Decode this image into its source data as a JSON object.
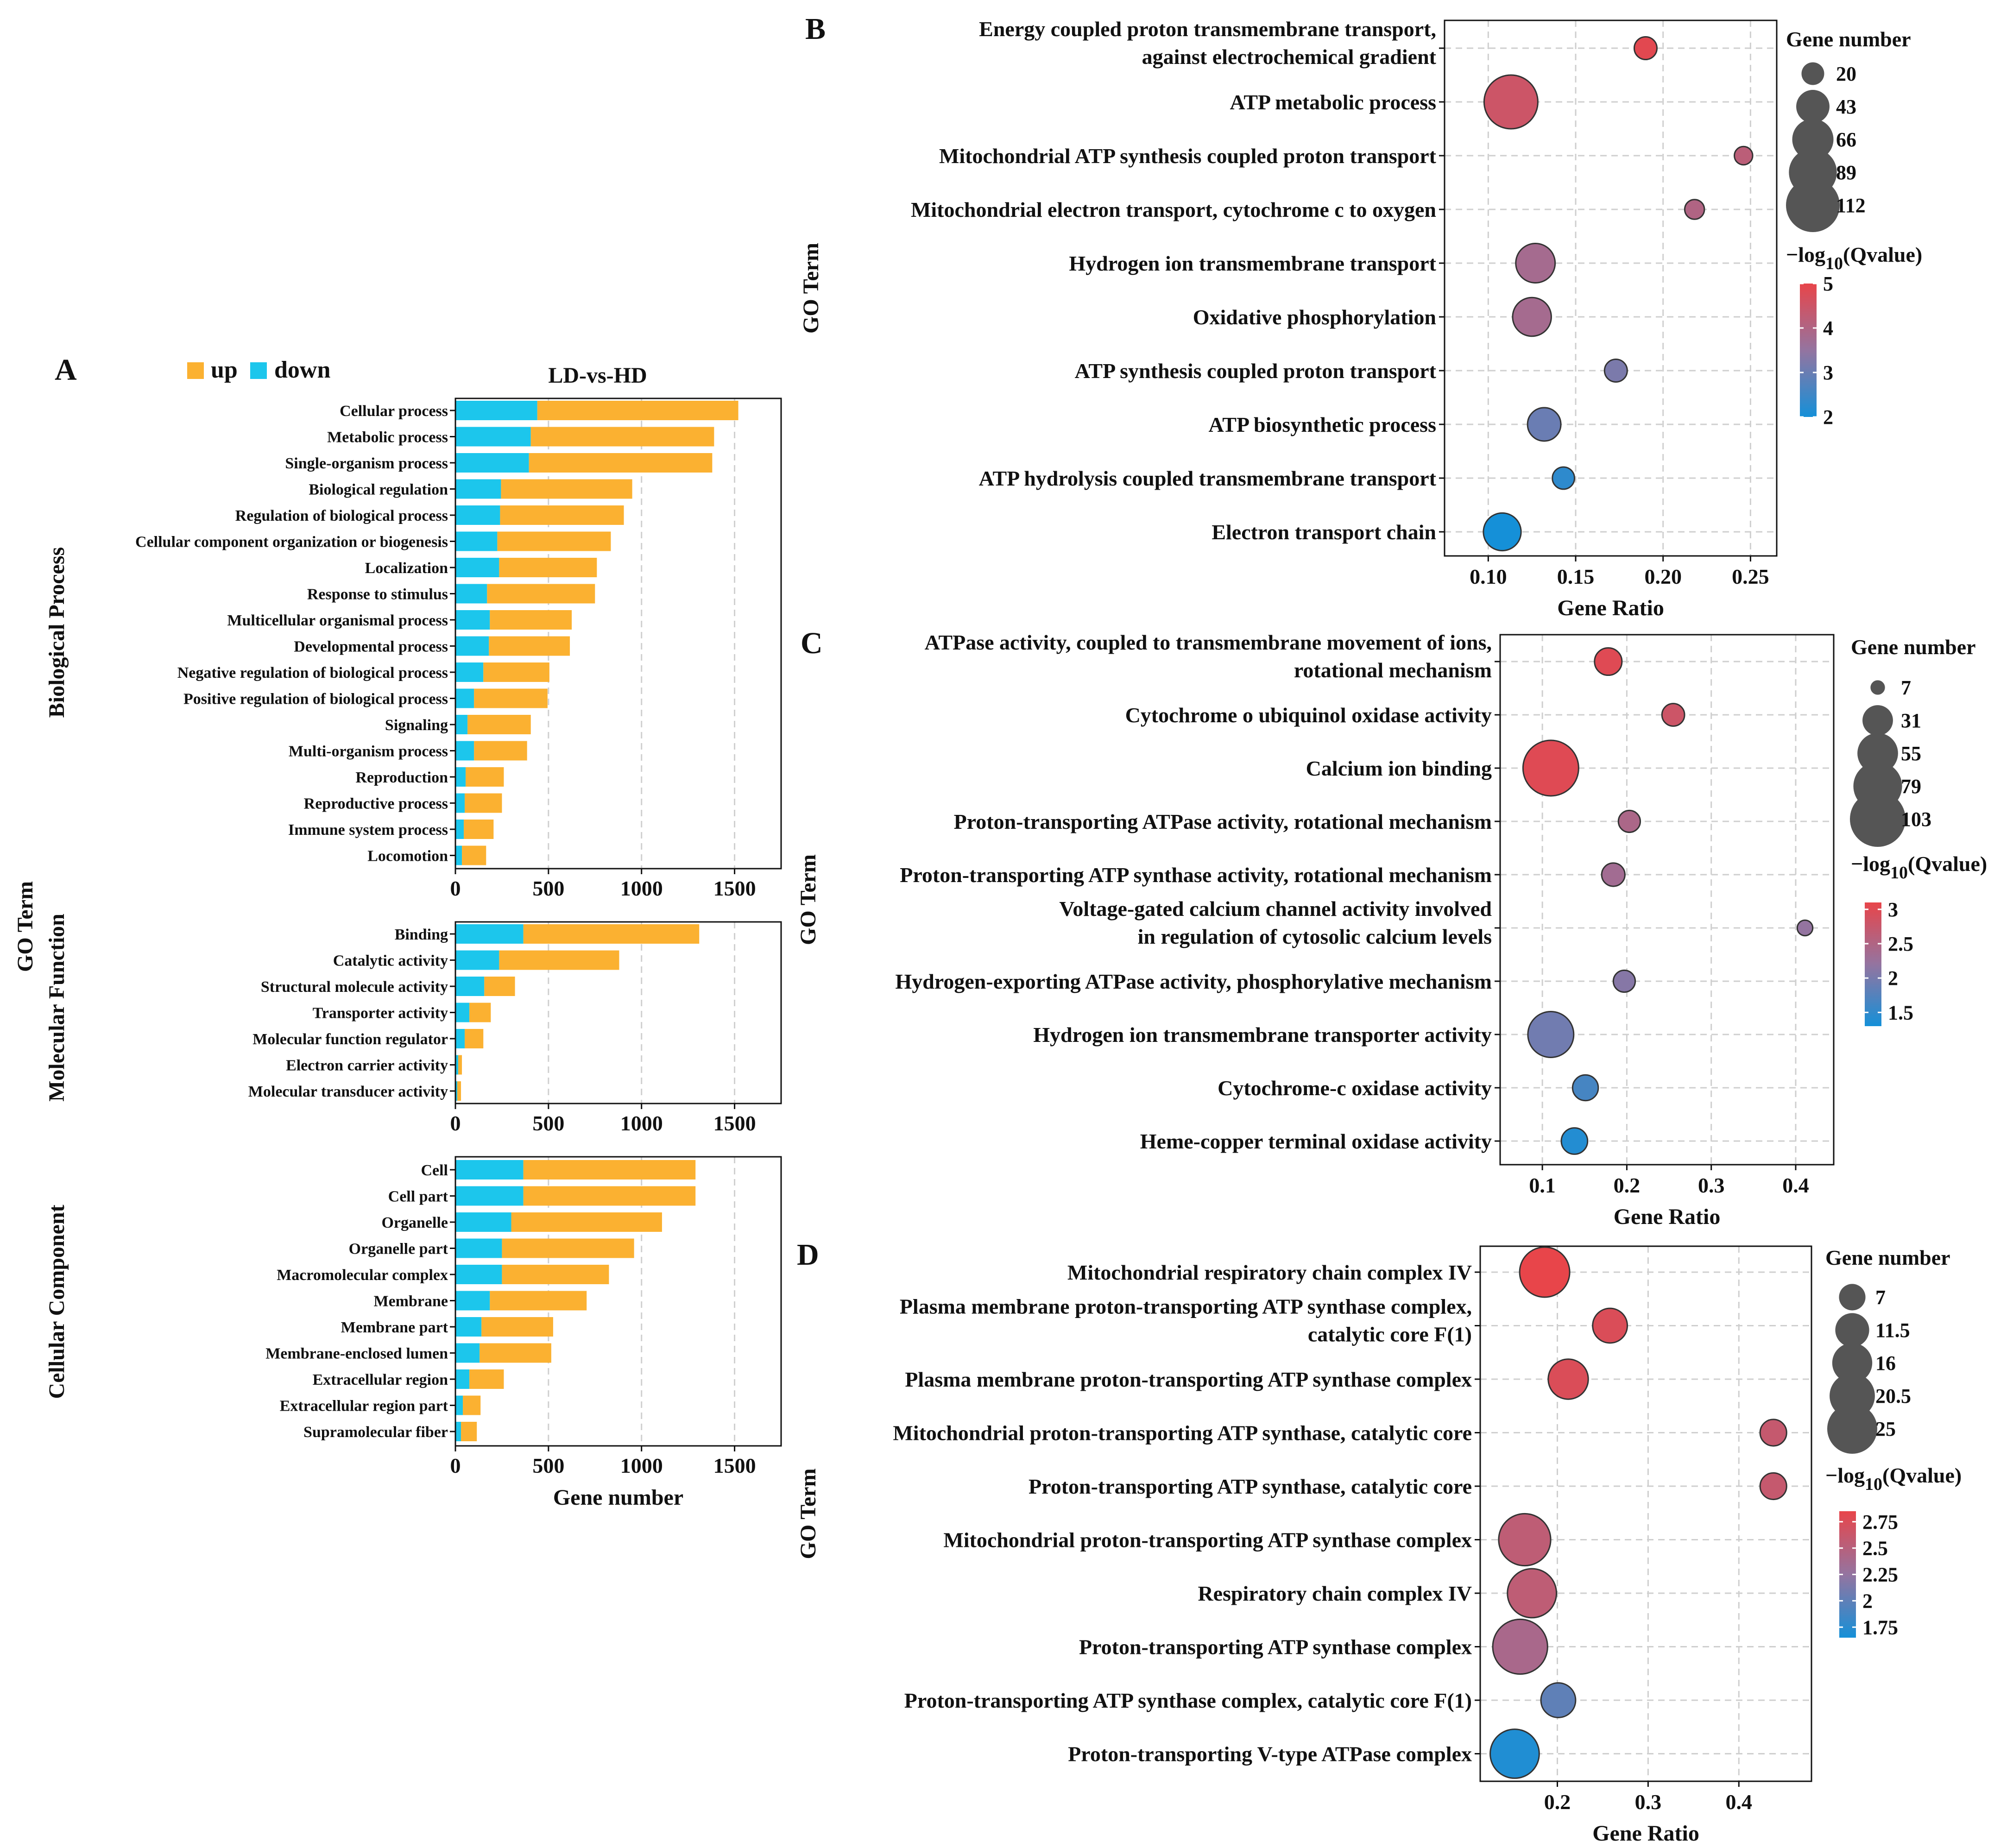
{
  "panel_letters": {
    "A": "A",
    "B": "B",
    "C": "C",
    "D": "D"
  },
  "colors": {
    "up": "#FBB131",
    "down": "#1CC6EC",
    "grid": "#cfcfcf",
    "axis": "#111111",
    "low_q": "#1590D8",
    "mid_q": "#9474A0",
    "high_q": "#E8454A"
  },
  "chart_data": [
    {
      "id": "A",
      "type": "bar",
      "stacked": true,
      "orientation": "horizontal",
      "title": "LD-vs-HD",
      "legend": {
        "items": [
          "up",
          "down"
        ],
        "position": "top-left"
      },
      "ylabel": "GO Term",
      "xlabel": "Gene number",
      "xlim": [
        0,
        1750
      ],
      "xticks": [
        0,
        500,
        1000,
        1500
      ],
      "grid": "x dashed",
      "groups": [
        {
          "name": "Biological Process",
          "categories": [
            "Cellular process",
            "Metabolic process",
            "Single-organism process",
            "Biological regulation",
            "Regulation of biological process",
            "Cellular component organization or biogenesis",
            "Localization",
            "Response to stimulus",
            "Multicellular organismal process",
            "Developmental process",
            "Negative regulation of biological process",
            "Positive regulation of biological process",
            "Signaling",
            "Multi-organism process",
            "Reproduction",
            "Reproductive process",
            "Immune system process",
            "Locomotion"
          ],
          "series": [
            {
              "name": "down",
              "values": [
                440,
                405,
                395,
                245,
                240,
                225,
                235,
                170,
                185,
                180,
                150,
                100,
                65,
                100,
                55,
                50,
                45,
                35
              ]
            },
            {
              "name": "up",
              "values": [
                1080,
                985,
                985,
                705,
                665,
                610,
                525,
                580,
                440,
                435,
                355,
                395,
                340,
                285,
                205,
                200,
                160,
                130
              ]
            }
          ]
        },
        {
          "name": "Molecular Function",
          "categories": [
            "Binding",
            "Catalytic activity",
            "Structural molecule activity",
            "Transporter activity",
            "Molecular function regulator",
            "Electron carrier activity",
            "Molecular transducer activity"
          ],
          "series": [
            {
              "name": "down",
              "values": [
                365,
                235,
                155,
                75,
                50,
                15,
                10
              ]
            },
            {
              "name": "up",
              "values": [
                945,
                645,
                165,
                115,
                100,
                20,
                20
              ]
            }
          ]
        },
        {
          "name": "Cellular Component",
          "categories": [
            "Cell",
            "Cell part",
            "Organelle",
            "Organelle part",
            "Macromolecular complex",
            "Membrane",
            "Membrane part",
            "Membrane-enclosed lumen",
            "Extracellular region",
            "Extracellular region part",
            "Supramolecular fiber"
          ],
          "series": [
            {
              "name": "down",
              "values": [
                365,
                365,
                300,
                250,
                250,
                185,
                140,
                130,
                75,
                40,
                30
              ]
            },
            {
              "name": "up",
              "values": [
                925,
                925,
                810,
                710,
                575,
                520,
                385,
                385,
                185,
                95,
                85
              ]
            }
          ]
        }
      ]
    },
    {
      "id": "B",
      "type": "scatter",
      "ylabel": "GO Term",
      "xlabel": "Gene Ratio",
      "xlim": [
        0.075,
        0.265
      ],
      "xticks": [
        0.1,
        0.15,
        0.2,
        0.25
      ],
      "xtick_labels": [
        "0.10",
        "0.15",
        "0.20",
        "0.25"
      ],
      "size_legend": {
        "title": "Gene number",
        "values": [
          20,
          43,
          66,
          89,
          112
        ]
      },
      "color_legend": {
        "title_prefix": "−log",
        "title_sub": "10",
        "title_suffix": "(Qvalue)",
        "range": [
          2,
          5
        ],
        "ticks": [
          5,
          4,
          3,
          2
        ]
      },
      "terms": [
        {
          "label": [
            "Energy coupled proton transmembrane transport,",
            "against electrochemical gradient"
          ],
          "x": 0.19,
          "size": 20,
          "q": 4.9
        },
        {
          "label": [
            "ATP metabolic process"
          ],
          "x": 0.113,
          "size": 112,
          "q": 4.5
        },
        {
          "label": [
            "Mitochondrial ATP synthesis coupled proton transport"
          ],
          "x": 0.246,
          "size": 13,
          "q": 4.2
        },
        {
          "label": [
            "Mitochondrial electron transport, cytochrome c to oxygen"
          ],
          "x": 0.218,
          "size": 15,
          "q": 4.0
        },
        {
          "label": [
            "Hydrogen ion transmembrane transport"
          ],
          "x": 0.127,
          "size": 60,
          "q": 3.8
        },
        {
          "label": [
            "Oxidative phosphorylation"
          ],
          "x": 0.125,
          "size": 58,
          "q": 3.8
        },
        {
          "label": [
            "ATP synthesis coupled proton transport"
          ],
          "x": 0.173,
          "size": 20,
          "q": 3.2
        },
        {
          "label": [
            "ATP biosynthetic process"
          ],
          "x": 0.132,
          "size": 43,
          "q": 3.0
        },
        {
          "label": [
            "ATP hydrolysis coupled transmembrane transport"
          ],
          "x": 0.143,
          "size": 19,
          "q": 2.3
        },
        {
          "label": [
            "Electron transport chain"
          ],
          "x": 0.108,
          "size": 55,
          "q": 2.0
        }
      ]
    },
    {
      "id": "C",
      "type": "scatter",
      "ylabel": "GO Term",
      "xlabel": "Gene Ratio",
      "xlim": [
        0.05,
        0.445
      ],
      "xticks": [
        0.1,
        0.2,
        0.3,
        0.4
      ],
      "xtick_labels": [
        "0.1",
        "0.2",
        "0.3",
        "0.4"
      ],
      "size_legend": {
        "title": "Gene number",
        "values": [
          7,
          31,
          55,
          79,
          103
        ]
      },
      "color_legend": {
        "title_prefix": "−log",
        "title_sub": "10",
        "title_suffix": "(Qvalue)",
        "range": [
          1.3,
          3.1
        ],
        "ticks": [
          3,
          2.5,
          2,
          1.5
        ]
      },
      "terms": [
        {
          "label": [
            "ATPase activity, coupled to transmembrane movement of ions,",
            "rotational mechanism"
          ],
          "x": 0.178,
          "size": 25,
          "q": 3.0
        },
        {
          "label": [
            "Cytochrome o ubiquinol oxidase activity"
          ],
          "x": 0.255,
          "size": 17,
          "q": 2.8
        },
        {
          "label": [
            "Calcium ion binding"
          ],
          "x": 0.11,
          "size": 103,
          "q": 3.0
        },
        {
          "label": [
            "Proton-transporting ATPase activity, rotational mechanism"
          ],
          "x": 0.203,
          "size": 16,
          "q": 2.45
        },
        {
          "label": [
            "Proton-transporting ATP synthase activity, rotational mechanism"
          ],
          "x": 0.184,
          "size": 18,
          "q": 2.35
        },
        {
          "label": [
            "Voltage-gated calcium channel activity involved",
            "in regulation of cytosolic calcium levels"
          ],
          "x": 0.411,
          "size": 8,
          "q": 2.2
        },
        {
          "label": [
            "Hydrogen-exporting ATPase activity, phosphorylative mechanism"
          ],
          "x": 0.197,
          "size": 16,
          "q": 2.1
        },
        {
          "label": [
            "Hydrogen ion transmembrane transporter activity"
          ],
          "x": 0.11,
          "size": 70,
          "q": 1.95
        },
        {
          "label": [
            "Cytochrome-c oxidase activity"
          ],
          "x": 0.151,
          "size": 22,
          "q": 1.65
        },
        {
          "label": [
            "Heme-copper terminal oxidase activity"
          ],
          "x": 0.138,
          "size": 23,
          "q": 1.4
        }
      ]
    },
    {
      "id": "D",
      "type": "scatter",
      "ylabel": "GO Term",
      "xlabel": "Gene Ratio",
      "xlim": [
        0.115,
        0.48
      ],
      "xticks": [
        0.2,
        0.3,
        0.4
      ],
      "xtick_labels": [
        "0.2",
        "0.3",
        "0.4"
      ],
      "size_legend": {
        "title": "Gene number",
        "values": [
          7,
          11.5,
          16,
          20.5,
          25
        ]
      },
      "color_legend": {
        "title_prefix": "−log",
        "title_sub": "10",
        "title_suffix": "(Qvalue)",
        "range": [
          1.65,
          2.85
        ],
        "ticks": [
          2.75,
          2.5,
          2.25,
          2,
          1.75
        ]
      },
      "terms": [
        {
          "label": [
            "Mitochondrial respiratory chain complex IV"
          ],
          "x": 0.186,
          "size": 25,
          "q": 2.85
        },
        {
          "label": [
            "Plasma membrane proton-transporting ATP synthase complex,",
            "catalytic core F(1)"
          ],
          "x": 0.258,
          "size": 12,
          "q": 2.75
        },
        {
          "label": [
            "Plasma membrane proton-transporting ATP synthase complex"
          ],
          "x": 0.212,
          "size": 16,
          "q": 2.75
        },
        {
          "label": [
            "Mitochondrial proton-transporting ATP synthase, catalytic core"
          ],
          "x": 0.438,
          "size": 7,
          "q": 2.6
        },
        {
          "label": [
            "Proton-transporting ATP synthase, catalytic core"
          ],
          "x": 0.438,
          "size": 7,
          "q": 2.6
        },
        {
          "label": [
            "Mitochondrial proton-transporting ATP synthase complex"
          ],
          "x": 0.164,
          "size": 27,
          "q": 2.55
        },
        {
          "label": [
            "Respiratory chain complex IV"
          ],
          "x": 0.172,
          "size": 24,
          "q": 2.55
        },
        {
          "label": [
            "Proton-transporting ATP synthase complex"
          ],
          "x": 0.159,
          "size": 30,
          "q": 2.4
        },
        {
          "label": [
            "Proton-transporting ATP synthase complex, catalytic core F(1)"
          ],
          "x": 0.201,
          "size": 12,
          "q": 2.0
        },
        {
          "label": [
            "Proton-transporting V-type ATPase complex"
          ],
          "x": 0.153,
          "size": 24,
          "q": 1.7
        }
      ]
    }
  ]
}
